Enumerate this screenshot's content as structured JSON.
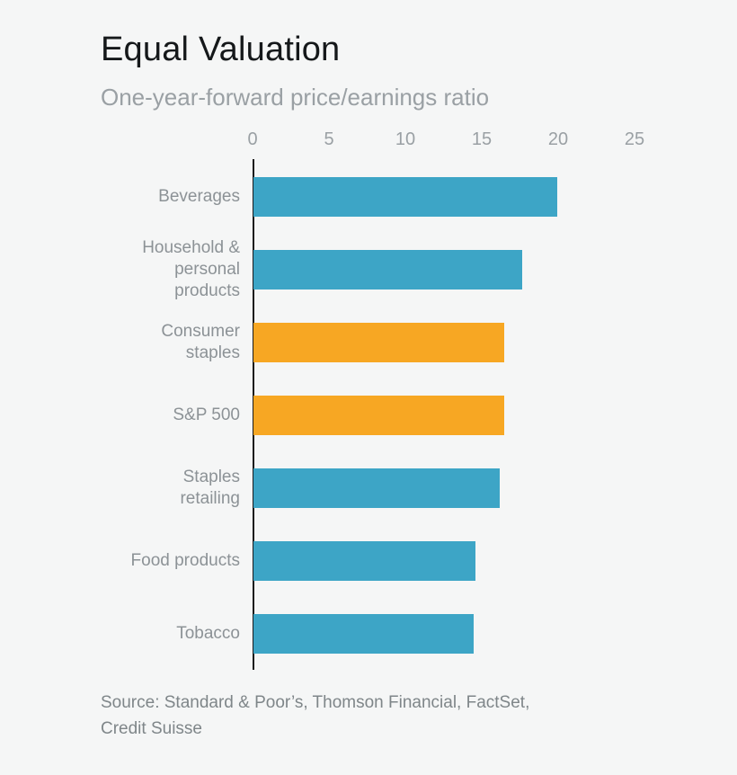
{
  "colors": {
    "background": "#f5f6f6",
    "teal": "#3da5c6",
    "orange": "#f7a723",
    "axis": "#1a1a1a",
    "title_text": "#15181a",
    "muted_text": "#9aa0a4"
  },
  "source": {
    "lines": [
      "Source: Standard & Poor’s, Thomson Financial, FactSet,",
      "Credit Suisse"
    ]
  },
  "chart_data": {
    "type": "bar",
    "orientation": "horizontal",
    "title": "Equal Valuation",
    "subtitle": "One-year-forward price/earnings ratio",
    "categories": [
      "Beverages",
      "Household & personal products",
      "Consumer staples",
      "S&P 500",
      "Staples retailing",
      "Food products",
      "Tobacco"
    ],
    "label_lines": [
      [
        "Beverages"
      ],
      [
        "Household &",
        "personal",
        "products"
      ],
      [
        "Consumer",
        "staples"
      ],
      [
        "S&P 500"
      ],
      [
        "Staples",
        "retailing"
      ],
      [
        "Food products"
      ],
      [
        "Tobacco"
      ]
    ],
    "values": [
      19.9,
      17.6,
      16.4,
      16.4,
      16.1,
      14.5,
      14.4
    ],
    "bar_colors": [
      "#3da5c6",
      "#3da5c6",
      "#f7a723",
      "#f7a723",
      "#3da5c6",
      "#3da5c6",
      "#3da5c6"
    ],
    "xlim": [
      0,
      25
    ],
    "xticks": [
      0,
      5,
      10,
      15,
      20,
      25
    ],
    "xlabel": "",
    "ylabel": "",
    "grid": false,
    "legend": false
  }
}
